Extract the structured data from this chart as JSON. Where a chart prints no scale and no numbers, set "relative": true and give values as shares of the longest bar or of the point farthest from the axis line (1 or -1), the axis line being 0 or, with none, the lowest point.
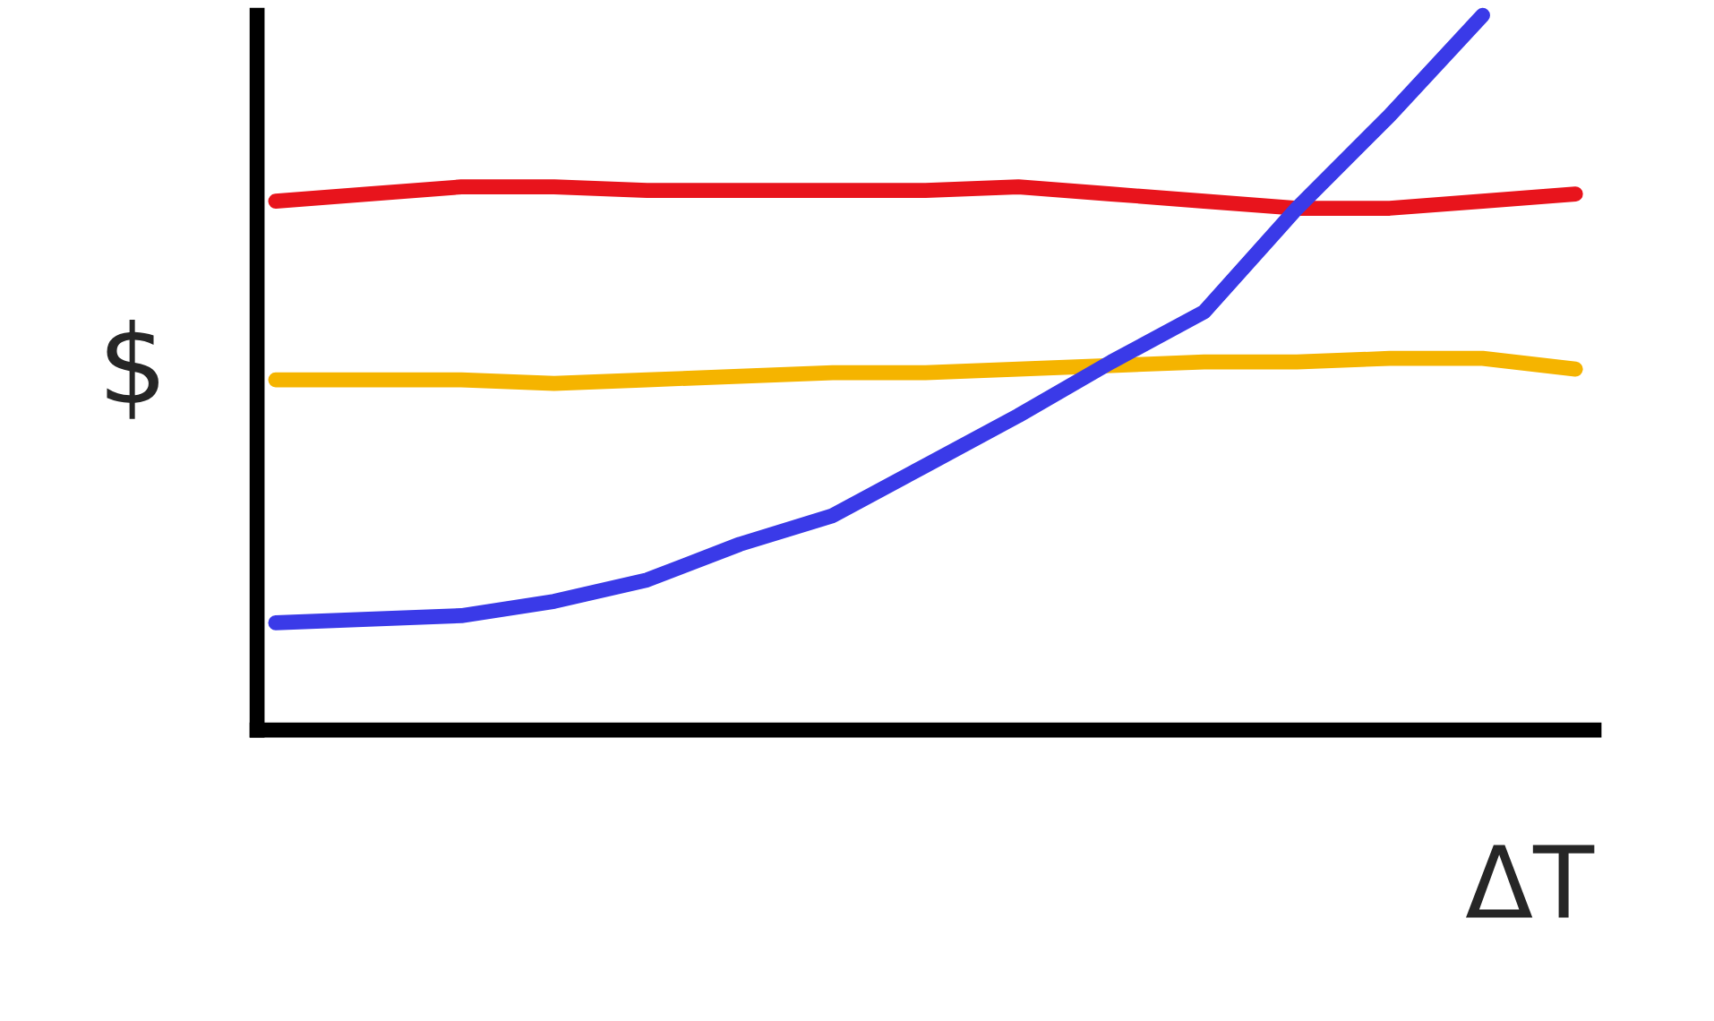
{
  "chart_data": {
    "type": "line",
    "relative": true,
    "xlabel": "ΔT",
    "ylabel": "$",
    "categories": [
      null,
      null,
      null,
      null,
      null,
      null,
      null,
      null,
      null,
      null,
      null,
      null,
      null,
      null,
      null
    ],
    "series": [
      {
        "color": "#e8141c",
        "values": [
          0.74,
          0.75,
          0.76,
          0.76,
          0.755,
          0.755,
          0.755,
          0.755,
          0.76,
          0.75,
          0.74,
          0.73,
          0.73,
          0.74,
          0.75
        ]
      },
      {
        "color": "#f5b400",
        "values": [
          0.49,
          0.49,
          0.49,
          0.485,
          0.49,
          0.495,
          0.5,
          0.5,
          0.505,
          0.51,
          0.515,
          0.515,
          0.52,
          0.52,
          0.505
        ]
      },
      {
        "color": "#3a3ae8",
        "values": [
          0.15,
          0.155,
          0.16,
          0.18,
          0.21,
          0.26,
          0.3,
          0.37,
          0.44,
          0.515,
          0.585,
          0.73,
          0.86,
          1.0,
          null
        ]
      }
    ],
    "grid": false,
    "legend": false,
    "marker": "none",
    "line_style": "solid",
    "tick_labels": false
  }
}
